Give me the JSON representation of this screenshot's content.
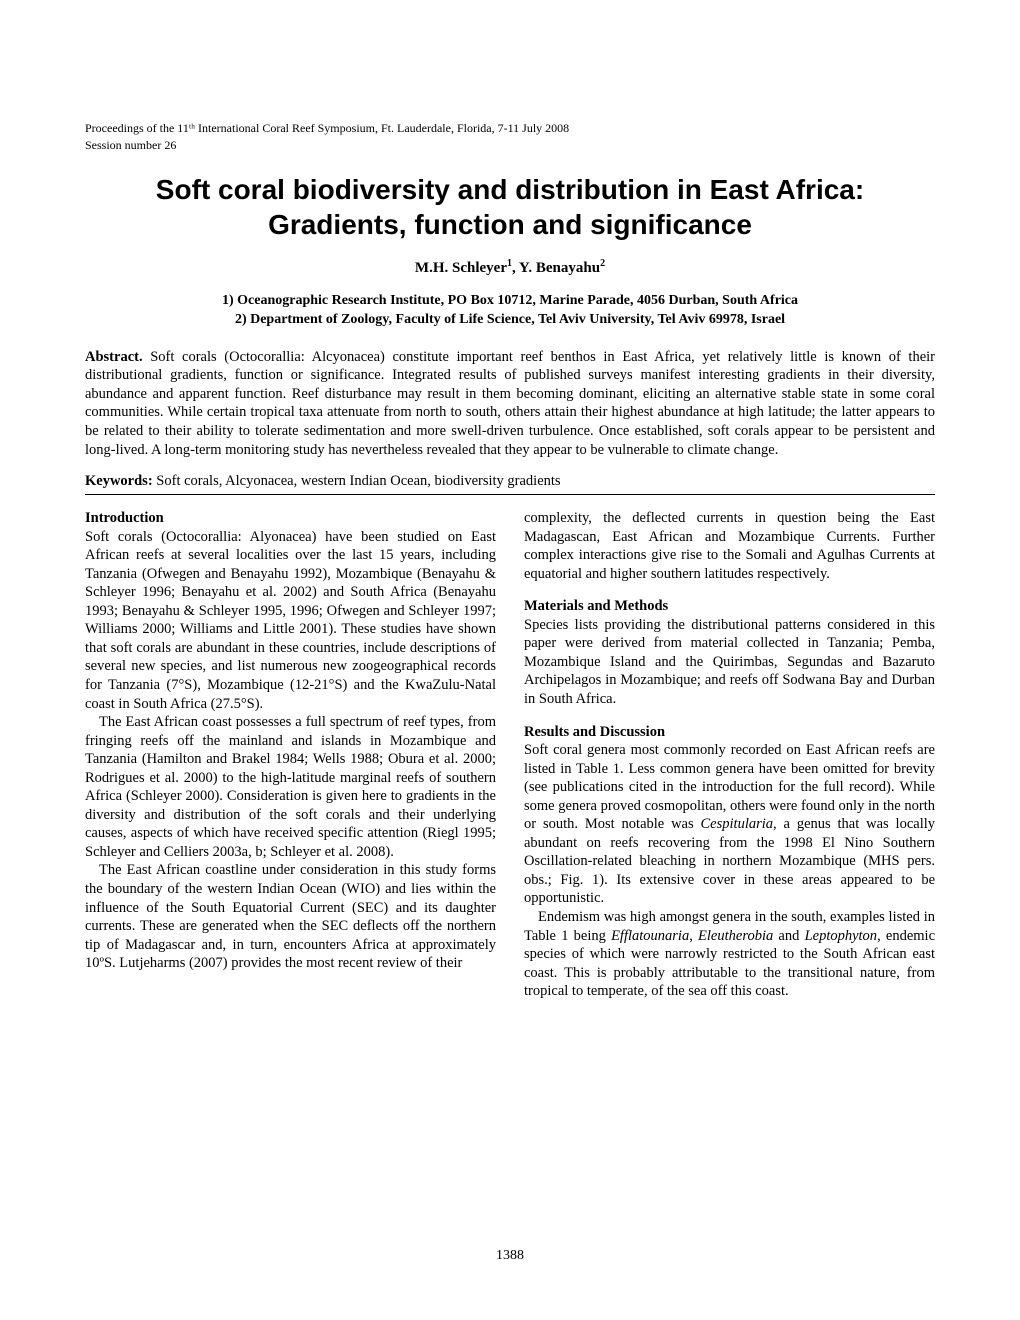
{
  "header": {
    "proceedings_line": "Proceedings of the 11ᵗʰ International Coral Reef Symposium, Ft. Lauderdale, Florida, 7-11 July 2008",
    "session_line": "Session number 26"
  },
  "title": "Soft coral biodiversity and distribution in East Africa: Gradients, function and significance",
  "authors_html": "M.H. Schleyer<sup>1</sup>, Y. Benayahu<sup>2</sup>",
  "affiliations": [
    "1)   Oceanographic Research Institute, PO Box 10712, Marine Parade, 4056 Durban, South Africa",
    "2)   Department of Zoology, Faculty of Life Science, Tel Aviv University, Tel Aviv 69978, Israel"
  ],
  "abstract_label": "Abstract.",
  "abstract_text": " Soft corals (Octocorallia: Alcyonacea) constitute important reef benthos in East Africa, yet relatively little is known of their distributional gradients, function or significance. Integrated results of published surveys manifest interesting gradients in their diversity, abundance and apparent function.  Reef disturbance may result in them becoming dominant, eliciting an alternative stable state in some coral communities. While certain tropical taxa attenuate from north to south, others attain their highest abundance at high latitude; the latter appears to be related to their ability to tolerate sedimentation and more swell-driven turbulence. Once established, soft corals appear to be persistent and long-lived. A long-term monitoring study has nevertheless revealed that they appear to be vulnerable to climate change.",
  "keywords_label": "Keywords:",
  "keywords_text": " Soft corals, Alcyonacea, western Indian Ocean, biodiversity gradients",
  "left_column": {
    "intro_head": "Introduction",
    "intro_p1": "Soft corals (Octocorallia: Alyonacea) have been studied on East African reefs at several localities over the last 15 years, including Tanzania (Ofwegen and Benayahu 1992), Mozambique (Benayahu & Schleyer 1996; Benayahu et al. 2002) and South Africa (Benayahu 1993; Benayahu & Schleyer 1995, 1996; Ofwegen and Schleyer 1997; Williams 2000; Williams and Little 2001). These studies have shown that soft corals are abundant in these countries, include descriptions of several new species, and list numerous new zoogeographical records for Tanzania (7°S), Mozambique (12-21°S) and the KwaZulu-Natal coast in South Africa (27.5°S).",
    "intro_p2": "The East African coast possesses a full spectrum of reef types, from fringing reefs off the mainland and islands in Mozambique and Tanzania (Hamilton and Brakel 1984; Wells 1988; Obura et al. 2000; Rodrigues et al. 2000) to the high-latitude marginal reefs of southern Africa (Schleyer 2000). Consideration is given here to gradients in the diversity and distribution of the soft corals and their underlying causes, aspects of which have received specific attention (Riegl 1995; Schleyer and Celliers 2003a, b; Schleyer et al. 2008).",
    "intro_p3": "The East African coastline under consideration in this study forms the boundary of the western Indian Ocean (WIO) and lies within the influence of the South Equatorial Current (SEC) and its daughter currents. These are generated when the SEC deflects off the northern tip of Madagascar and, in turn, encounters Africa at approximately 10ºS. Lutjeharms (2007) provides the most recent review of their"
  },
  "right_column": {
    "cont_p1": "complexity, the deflected currents in question being the East Madagascan, East African and Mozambique Currents. Further complex interactions give rise to the Somali and Agulhas Currents at equatorial and higher southern latitudes respectively.",
    "methods_head": "Materials and Methods",
    "methods_p1": "Species lists providing the distributional patterns considered in this paper were derived from material collected in Tanzania; Pemba, Mozambique Island and the Quirimbas, Segundas and Bazaruto Archipelagos in Mozambique; and reefs off Sodwana Bay and Durban in South Africa.",
    "results_head": "Results and Discussion",
    "results_p1_pre": "Soft coral genera most commonly recorded on East African reefs are listed in Table 1. Less common genera have been omitted for brevity (see publications cited in the introduction for the full record). While some genera proved cosmopolitan, others were found only in the north or south. Most notable was ",
    "results_p1_italic1": "Cespitularia",
    "results_p1_post": ", a genus that was locally abundant on reefs recovering from the 1998 El Nino Southern Oscillation-related bleaching in northern Mozambique (MHS pers. obs.; Fig. 1). Its extensive cover in these areas appeared to be opportunistic.",
    "results_p2_pre": "Endemism was high amongst genera in the south, examples listed in Table 1 being ",
    "results_p2_italic1": "Efflatounaria",
    "results_p2_mid1": ", ",
    "results_p2_italic2": "Eleutherobia",
    "results_p2_mid2": " and ",
    "results_p2_italic3": "Leptophyton",
    "results_p2_post": ", endemic species of which were narrowly restricted to the South African east coast. This is probably attributable to the transitional nature, from tropical to temperate, of the sea off this coast."
  },
  "page_number": "1388"
}
